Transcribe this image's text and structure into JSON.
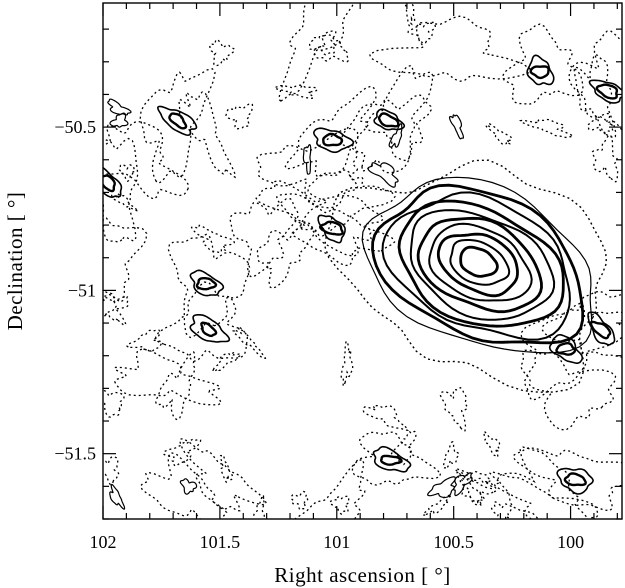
{
  "chart_data": {
    "type": "contour",
    "xlabel": "Right ascension [ °]",
    "ylabel": "Declination [ °]",
    "xlim": [
      102,
      99.78
    ],
    "ylim": [
      -51.7,
      -50.12
    ],
    "x_ticks": [
      {
        "value": 102,
        "label": "102"
      },
      {
        "value": 101.5,
        "label": "101.5"
      },
      {
        "value": 101,
        "label": "101"
      },
      {
        "value": 100.5,
        "label": "100.5"
      },
      {
        "value": 100,
        "label": "100"
      }
    ],
    "y_ticks": [
      {
        "value": -50.5,
        "label": "−50.5"
      },
      {
        "value": -51,
        "label": "−51"
      },
      {
        "value": -51.5,
        "label": "−51.5"
      }
    ],
    "x_minor_step": 0.1,
    "y_minor_step": 0.1,
    "grid": false,
    "main_source": {
      "ra_center": 100.38,
      "dec_center": -50.93,
      "n_contour_levels": 10
    },
    "compact_sources": [
      {
        "ra": 101.68,
        "dec": -50.48
      },
      {
        "ra": 100.78,
        "dec": -50.48
      },
      {
        "ra": 101.02,
        "dec": -50.54
      },
      {
        "ra": 100.13,
        "dec": -50.33
      },
      {
        "ra": 101.02,
        "dec": -50.81
      },
      {
        "ra": 101.55,
        "dec": -51.12
      },
      {
        "ra": 101.56,
        "dec": -50.98
      },
      {
        "ra": 100.02,
        "dec": -51.18
      },
      {
        "ra": 99.98,
        "dec": -51.58
      },
      {
        "ra": 99.87,
        "dec": -51.12
      },
      {
        "ra": 100.77,
        "dec": -51.52
      },
      {
        "ra": 99.84,
        "dec": -50.39
      },
      {
        "ra": 101.98,
        "dec": -50.67
      }
    ]
  }
}
